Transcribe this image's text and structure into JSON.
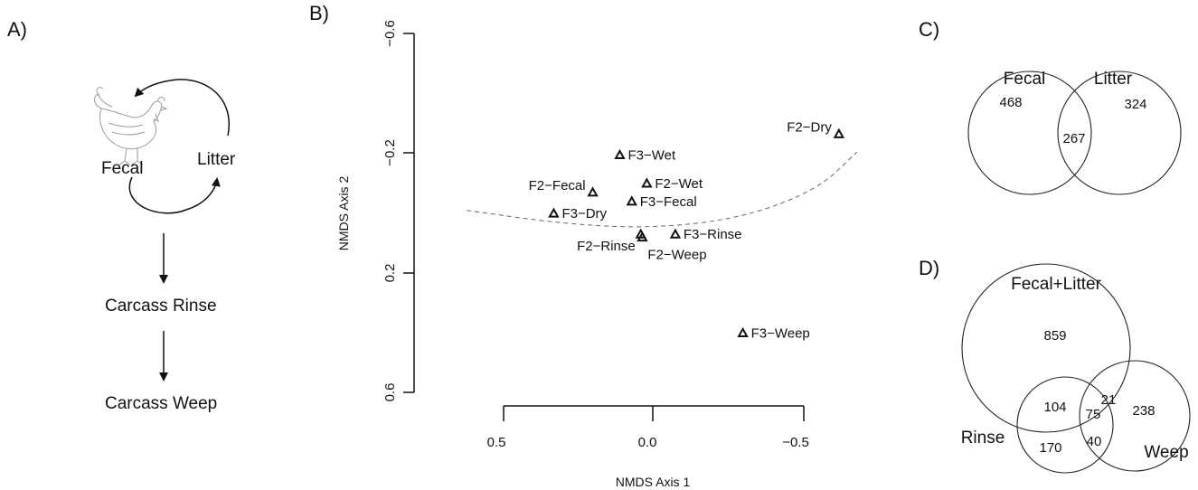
{
  "panel_labels": {
    "a": "A)",
    "b": "B)",
    "c": "C)",
    "d": "D)"
  },
  "flow": {
    "fecal": "Fecal",
    "litter": "Litter",
    "rinse": "Carcass Rinse",
    "weep": "Carcass Weep",
    "icon": "chicken-icon"
  },
  "chart_data": [
    {
      "type": "scatter",
      "xlabel": "NMDS Axis 1",
      "ylabel": "NMDS Axis 2",
      "xlim": [
        0.62,
        -0.68
      ],
      "ylim": [
        -0.6,
        0.6
      ],
      "x_ticks": [
        "0.5",
        "0.0",
        "−0.5"
      ],
      "y_ticks": [
        "−0.6",
        "−0.2",
        "0.2",
        "0.6"
      ],
      "marker": "open-triangle",
      "points": [
        {
          "label": "F2−Dry",
          "x": -0.62,
          "y": -0.265,
          "label_side": "left"
        },
        {
          "label": "F3−Wet",
          "x": 0.11,
          "y": -0.195,
          "label_side": "right"
        },
        {
          "label": "F2−Wet",
          "x": 0.02,
          "y": -0.1,
          "label_side": "right"
        },
        {
          "label": "F2−Fecal",
          "x": 0.2,
          "y": -0.07,
          "label_side": "left"
        },
        {
          "label": "F3−Fecal",
          "x": 0.07,
          "y": -0.04,
          "label_side": "right"
        },
        {
          "label": "F3−Dry",
          "x": 0.33,
          "y": 0.0,
          "label_side": "right"
        },
        {
          "label": "F2−Rinse",
          "x": 0.04,
          "y": 0.07,
          "label_side": "left-below"
        },
        {
          "label": "F2−Weep",
          "x": 0.035,
          "y": 0.08,
          "label_side": "right-below"
        },
        {
          "label": "F3−Rinse",
          "x": -0.075,
          "y": 0.07,
          "label_side": "right"
        },
        {
          "label": "F3−Weep",
          "x": -0.3,
          "y": 0.4,
          "label_side": "right"
        }
      ],
      "curve": [
        [
          0.62,
          -0.01
        ],
        [
          0.3,
          0.035
        ],
        [
          0.0,
          0.05
        ],
        [
          -0.3,
          0.015
        ],
        [
          -0.55,
          -0.08
        ],
        [
          -0.68,
          -0.205
        ]
      ]
    },
    {
      "type": "venn",
      "sets": [
        "Fecal",
        "Litter"
      ],
      "regions": {
        "Fecal_only": 468,
        "Litter_only": 324,
        "Fecal_and_Litter": 267
      }
    },
    {
      "type": "venn",
      "sets": [
        "Fecal+Litter",
        "Rinse",
        "Weep"
      ],
      "regions": {
        "Fecal+Litter_only": 859,
        "Rinse_and_Fecal+Litter": 104,
        "Weep_and_Fecal+Litter": 21,
        "all_three": 75,
        "Rinse_only": 170,
        "Rinse_and_Weep": 40,
        "Weep_only": 238
      }
    }
  ]
}
